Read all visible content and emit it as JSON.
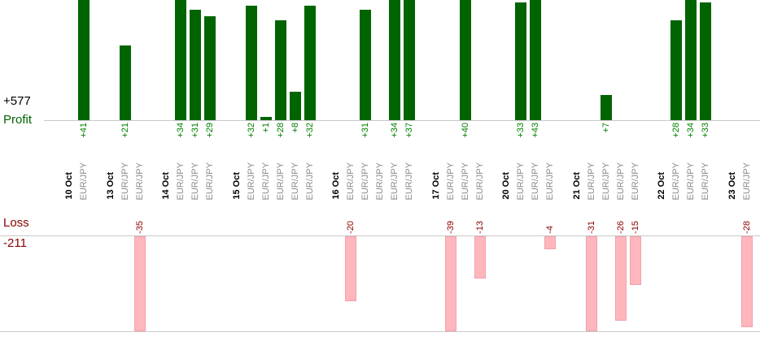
{
  "chart_data": {
    "type": "bar",
    "title": "",
    "profit_axis": {
      "label": "Profit",
      "total": "+577"
    },
    "loss_axis": {
      "label": "Loss",
      "total": "-211"
    },
    "layout": {
      "orientation": "profit bars grow up from upper baseline, loss bars grow down from lower baseline",
      "grid": "off",
      "profit_axis_clip": 34,
      "loss_axis_clip": 30
    },
    "colors": {
      "profit_bar": "#006400",
      "profit_value_text": "#008000",
      "profit_axis_text": "#006400",
      "total_profit_text": "#000000",
      "loss_bar": "#ffb6bd",
      "loss_bar_border": "#f2a0ac",
      "loss_text": "#8b0000",
      "date_text": "#000000",
      "instrument_text": "#8a8a8a",
      "axis_line": "#c9c9c9"
    },
    "groups": [
      {
        "date": "10 Oct",
        "trades": [
          {
            "instrument": "EUR/JPY",
            "value": 41,
            "label": "+41"
          }
        ]
      },
      {
        "date": "13 Oct",
        "trades": [
          {
            "instrument": "EUR/JPY",
            "value": 21,
            "label": "+21"
          },
          {
            "instrument": "EUR/JPY",
            "value": -35,
            "label": "-35"
          }
        ]
      },
      {
        "date": "14 Oct",
        "trades": [
          {
            "instrument": "EUR/JPY",
            "value": 34,
            "label": "+34"
          },
          {
            "instrument": "EUR/JPY",
            "value": 31,
            "label": "+31"
          },
          {
            "instrument": "EUR/JPY",
            "value": 29,
            "label": "+29"
          }
        ]
      },
      {
        "date": "15 Oct",
        "trades": [
          {
            "instrument": "EUR/JPY",
            "value": 32,
            "label": "+32"
          },
          {
            "instrument": "EUR/JPY",
            "value": 1,
            "label": "+1"
          },
          {
            "instrument": "EUR/JPY",
            "value": 28,
            "label": "+28"
          },
          {
            "instrument": "EUR/JPY",
            "value": 8,
            "label": "+8"
          },
          {
            "instrument": "EUR/JPY",
            "value": 32,
            "label": "+32"
          }
        ]
      },
      {
        "date": "16 Oct",
        "trades": [
          {
            "instrument": "EUR/JPY",
            "value": -20,
            "label": "-20"
          },
          {
            "instrument": "EUR/JPY",
            "value": 31,
            "label": "+31"
          },
          {
            "instrument": "EUR/JPY",
            "value": null,
            "label": ""
          },
          {
            "instrument": "EUR/JPY",
            "value": 34,
            "label": "+34"
          },
          {
            "instrument": "EUR/JPY",
            "value": 37,
            "label": "+37"
          }
        ]
      },
      {
        "date": "17 Oct",
        "trades": [
          {
            "instrument": "EUR/JPY",
            "value": -39,
            "label": "-39"
          },
          {
            "instrument": "EUR/JPY",
            "value": 40,
            "label": "+40"
          },
          {
            "instrument": "EUR/JPY",
            "value": -13,
            "label": "-13"
          }
        ]
      },
      {
        "date": "20 Oct",
        "trades": [
          {
            "instrument": "EUR/JPY",
            "value": 33,
            "label": "+33"
          },
          {
            "instrument": "EUR/JPY",
            "value": 43,
            "label": "+43"
          },
          {
            "instrument": "EUR/JPY",
            "value": -4,
            "label": "-4"
          }
        ]
      },
      {
        "date": "21 Oct",
        "trades": [
          {
            "instrument": "EUR/JPY",
            "value": -31,
            "label": "-31"
          },
          {
            "instrument": "EUR/JPY",
            "value": 7,
            "label": "+7"
          },
          {
            "instrument": "EUR/JPY",
            "value": -26,
            "label": "-26"
          },
          {
            "instrument": "EUR/JPY",
            "value": -15,
            "label": "-15"
          }
        ]
      },
      {
        "date": "22 Oct",
        "trades": [
          {
            "instrument": "EUR/JPY",
            "value": 28,
            "label": "+28"
          },
          {
            "instrument": "EUR/JPY",
            "value": 34,
            "label": "+34"
          },
          {
            "instrument": "EUR/JPY",
            "value": 33,
            "label": "+33"
          }
        ]
      },
      {
        "date": "23 Oct",
        "trades": [
          {
            "instrument": "EUR/JPY",
            "value": -28,
            "label": "-28"
          }
        ]
      }
    ]
  }
}
